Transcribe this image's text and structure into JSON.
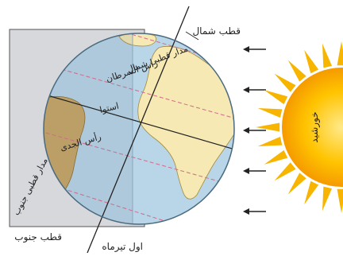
{
  "labels": {
    "north_pole": "قطب شمال",
    "south_pole": "قطب جنوب",
    "arctic_circle": "مدار قطبی شمال",
    "tropic_cancer": "رأس السرطان",
    "equator": "استوا",
    "tropic_capricorn": "رأس الجدی",
    "antarctic_circle": "مدار قطبی جنوب",
    "date_caption": "اول تیرماه",
    "sun": "خورشید"
  },
  "colors": {
    "ocean": "#b9d6e8",
    "land_day": "#f6e9b4",
    "land_night": "#c9a763",
    "night_panel": "#d7d8dc",
    "sun_core": "#f5a000",
    "sun_glow": "#ffe35a",
    "sun_rays": "#f7b500",
    "line": "#222222"
  },
  "sun_rays_count": 5
}
